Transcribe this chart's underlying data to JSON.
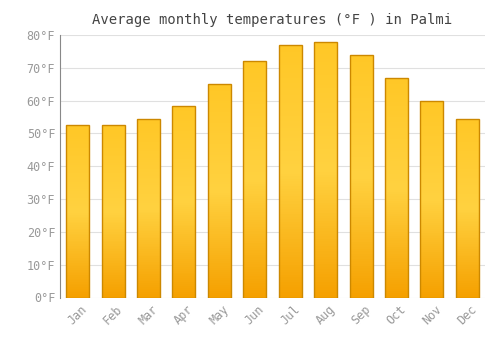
{
  "title": "Average monthly temperatures (°F ) in Palmi",
  "months": [
    "Jan",
    "Feb",
    "Mar",
    "Apr",
    "May",
    "Jun",
    "Jul",
    "Aug",
    "Sep",
    "Oct",
    "Nov",
    "Dec"
  ],
  "values": [
    52.5,
    52.5,
    54.5,
    58.5,
    65,
    72,
    77,
    78,
    74,
    67,
    60,
    54.5
  ],
  "bar_color_light": "#FFD060",
  "bar_color_dark": "#F5A000",
  "bar_edge_color": "#CC8800",
  "background_color": "#ffffff",
  "grid_color": "#e0e0e0",
  "tick_label_color": "#999999",
  "title_color": "#444444",
  "ylim": [
    0,
    80
  ],
  "yticks": [
    0,
    10,
    20,
    30,
    40,
    50,
    60,
    70,
    80
  ],
  "title_fontsize": 10,
  "tick_fontsize": 8.5,
  "bar_width": 0.65
}
